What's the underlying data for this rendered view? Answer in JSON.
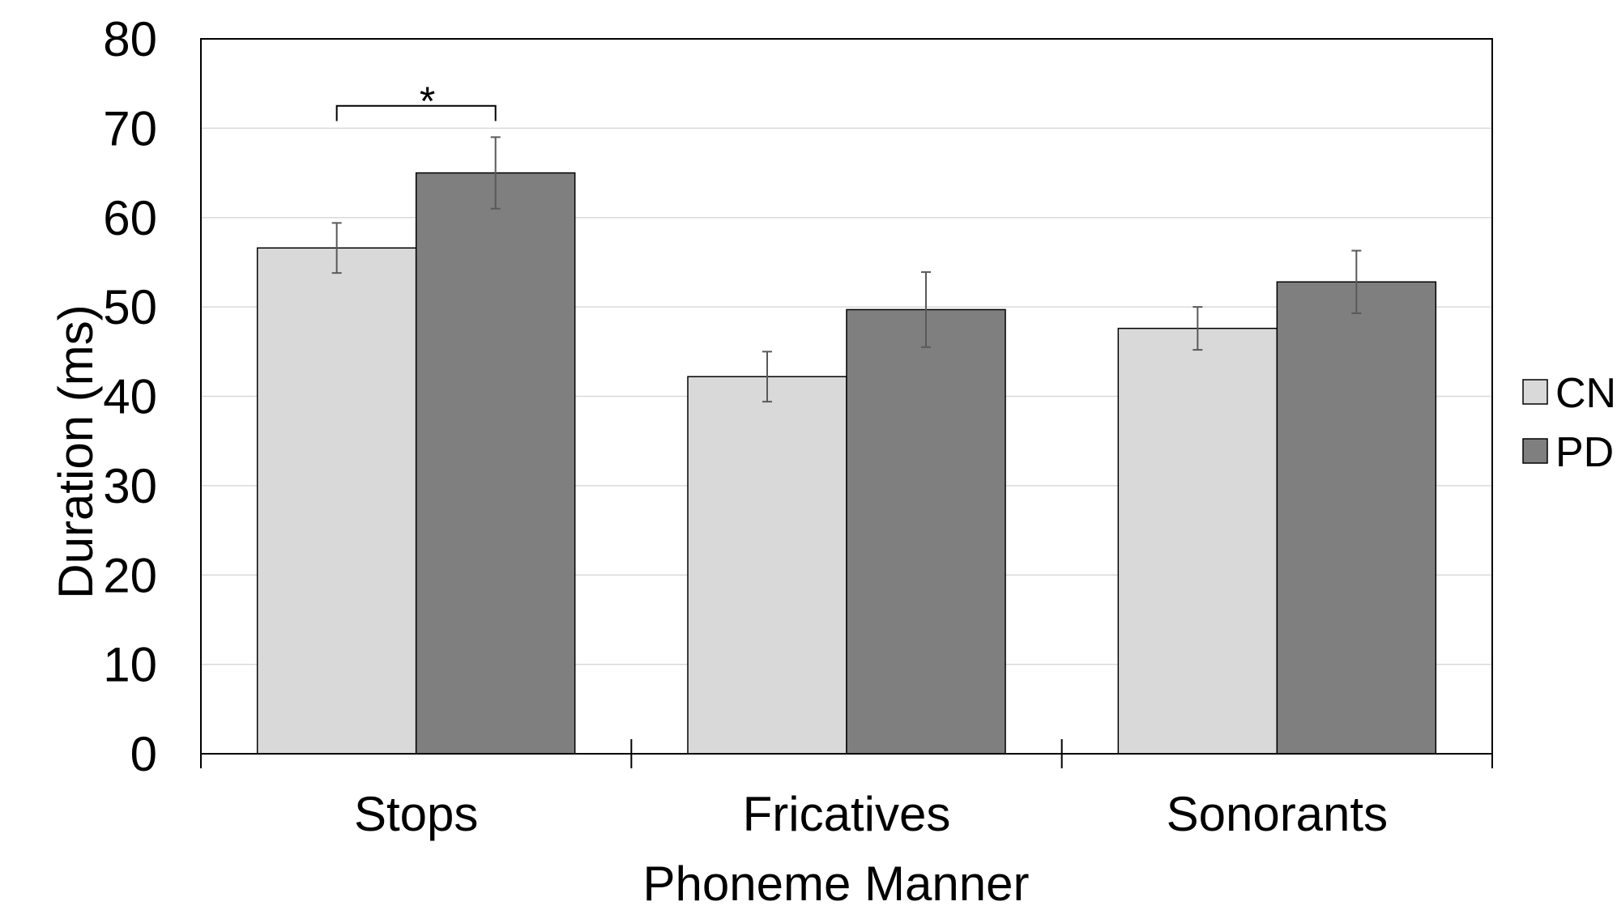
{
  "chart_data": {
    "type": "bar",
    "categories": [
      "Stops",
      "Fricatives",
      "Sonorants"
    ],
    "series": [
      {
        "name": "CN",
        "values": [
          56.6,
          42.2,
          47.6
        ],
        "errors": [
          2.8,
          2.8,
          2.4
        ],
        "color": "#d9d9d9"
      },
      {
        "name": "PD",
        "values": [
          65.0,
          49.7,
          52.8
        ],
        "errors": [
          4.0,
          4.2,
          3.5
        ],
        "color": "#7f7f7f"
      }
    ],
    "xlabel": "Phoneme Manner",
    "ylabel": "Duration (ms)",
    "ylim": [
      0,
      80
    ],
    "yticks": [
      0,
      10,
      20,
      30,
      40,
      50,
      60,
      70,
      80
    ],
    "grid": true,
    "legend_position": "right",
    "significance": [
      {
        "category": "Stops",
        "label": "*"
      }
    ]
  }
}
